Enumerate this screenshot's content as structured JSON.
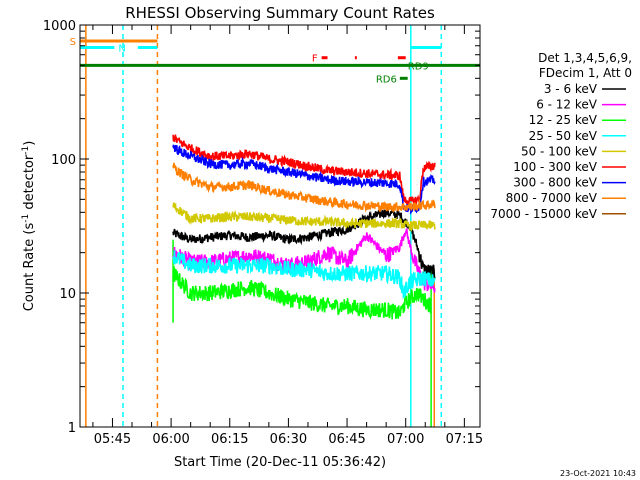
{
  "chart_data": {
    "type": "line",
    "title": "RHESSI Observing Summary Count Rates",
    "xlabel": "Start Time (20-Dec-11 05:36:42)",
    "ylabel_main": "Count Rate (s",
    "ylabel_sup1": "-1",
    "ylabel_mid": " detector",
    "ylabel_sup2": "-1",
    "ylabel_end": ")",
    "ylog": true,
    "ylim": [
      1,
      1000
    ],
    "xlim_minutes": [
      36.7,
      139
    ],
    "x_ticks": [
      {
        "label": "05:45",
        "minute": 45
      },
      {
        "label": "06:00",
        "minute": 60
      },
      {
        "label": "06:15",
        "minute": 75
      },
      {
        "label": "06:30",
        "minute": 90
      },
      {
        "label": "06:45",
        "minute": 105
      },
      {
        "label": "07:00",
        "minute": 120
      },
      {
        "label": "07:15",
        "minute": 135
      }
    ],
    "y_ticks": [
      {
        "label": "1",
        "value": 1
      },
      {
        "label": "10",
        "value": 10
      },
      {
        "label": "100",
        "value": 100
      },
      {
        "label": "1000",
        "value": 1000
      }
    ],
    "legend_header": [
      "Det 1,3,4,5,6,9,",
      "FDecim 1, Att 0"
    ],
    "data_gap_minutes": [
      56.5,
      60.5
    ],
    "series": [
      {
        "name": "3 - 6 keV",
        "color": "#000000",
        "x": [
          60.5,
          65,
          70,
          75,
          80,
          85,
          90,
          95,
          100,
          105,
          110,
          115,
          118.5,
          119.5,
          121,
          123,
          124.5,
          127.5
        ],
        "y": [
          28,
          25,
          26,
          27,
          26,
          27,
          25,
          26,
          28,
          30,
          36,
          40,
          38,
          35,
          32,
          22,
          15,
          14
        ]
      },
      {
        "name": "6 - 12 keV",
        "color": "#ff00ff",
        "x": [
          60.5,
          65,
          70,
          75,
          80,
          85,
          90,
          95,
          100,
          105,
          110,
          115,
          118.5,
          120,
          122,
          124.5,
          127.5
        ],
        "y": [
          20,
          17,
          17,
          18,
          19,
          18,
          16,
          17,
          20,
          17,
          27,
          19,
          22,
          30,
          18,
          12,
          11
        ]
      },
      {
        "name": "12 - 25 keV",
        "color": "#00ff00",
        "x": [
          60.5,
          65,
          70,
          75,
          80,
          85,
          90,
          95,
          100,
          105,
          110,
          115,
          118.5,
          119.5,
          121,
          123,
          124.5,
          126.5
        ],
        "y": [
          14,
          10,
          10,
          10.5,
          11,
          10,
          9,
          8.5,
          8,
          8,
          7.5,
          7.5,
          7,
          8,
          9,
          10,
          9,
          8
        ]
      },
      {
        "name": "25 - 50 keV",
        "color": "#00ffff",
        "x": [
          60.5,
          65,
          70,
          75,
          80,
          85,
          90,
          95,
          100,
          105,
          110,
          115,
          118.5,
          119.5,
          121,
          124.5,
          127.5
        ],
        "y": [
          19,
          16,
          16,
          16,
          16,
          16,
          15,
          15,
          14,
          14,
          14,
          14,
          13,
          10,
          12,
          13,
          12
        ]
      },
      {
        "name": "50 - 100 keV",
        "color": "#d2c800",
        "x": [
          60.5,
          65,
          70,
          75,
          80,
          85,
          90,
          95,
          100,
          105,
          110,
          115,
          118.5,
          120,
          122,
          124.5,
          127.5
        ],
        "y": [
          45,
          36,
          36,
          37,
          37,
          36,
          35,
          34,
          34,
          33,
          33,
          33,
          33,
          32,
          32,
          32,
          32
        ]
      },
      {
        "name": "100 - 300 keV",
        "color": "#ff0000",
        "x": [
          60.5,
          62,
          65,
          70,
          75,
          80,
          85,
          90,
          95,
          100,
          105,
          110,
          115,
          118.5,
          119.5,
          121,
          123.5,
          124.5,
          127.5
        ],
        "y": [
          145,
          135,
          120,
          105,
          105,
          110,
          100,
          95,
          88,
          82,
          80,
          78,
          76,
          75,
          50,
          48,
          50,
          85,
          90
        ]
      },
      {
        "name": "300 - 800 keV",
        "color": "#0000ff",
        "x": [
          60.5,
          62,
          65,
          70,
          75,
          80,
          85,
          90,
          95,
          100,
          105,
          110,
          115,
          118.5,
          119.5,
          121,
          123.5,
          124.5,
          127.5
        ],
        "y": [
          125,
          115,
          105,
          92,
          90,
          93,
          85,
          80,
          75,
          70,
          68,
          67,
          66,
          65,
          44,
          42,
          44,
          68,
          70
        ]
      },
      {
        "name": "800 - 7000 keV",
        "color": "#ff8000",
        "x": [
          60.5,
          62,
          65,
          70,
          75,
          80,
          85,
          90,
          95,
          100,
          105,
          110,
          115,
          118.5,
          121,
          124.5,
          127.5
        ],
        "y": [
          88,
          80,
          70,
          62,
          62,
          64,
          58,
          54,
          51,
          48,
          46,
          45,
          44,
          44,
          44,
          45,
          46
        ]
      },
      {
        "name": "7000 - 15000 keV",
        "color": "#a05000",
        "x": [
          126.5,
          127.5
        ],
        "y": [
          1,
          1
        ]
      }
    ],
    "vertical_lines": [
      {
        "minute": 38.2,
        "color": "#ff8000",
        "style": "solid"
      },
      {
        "minute": 47.7,
        "color": "#00ffff",
        "style": "dashed"
      },
      {
        "minute": 56.5,
        "color": "#ff8000",
        "style": "dashed"
      },
      {
        "minute": 60.5,
        "color": "#00ff00",
        "style": "solid",
        "ymax": 25,
        "ymin": 6
      },
      {
        "minute": 121.3,
        "color": "#00ffff",
        "style": "solid"
      },
      {
        "minute": 126.5,
        "color": "#00ff00",
        "style": "solid",
        "ymax": 15,
        "ymin": 1
      },
      {
        "minute": 127.3,
        "color": "#ff8000",
        "style": "solid",
        "ymax": 15,
        "ymin": 1
      },
      {
        "minute": 129.1,
        "color": "#00ffff",
        "style": "dashed"
      }
    ],
    "flag_bars": [
      {
        "label": "S",
        "color": "#ff8000",
        "start": 36.7,
        "end": 56.5,
        "y": 760,
        "label_side": "left"
      },
      {
        "label": "N",
        "color": "#00ffff",
        "start": 36.7,
        "end": 45.5,
        "y": 680,
        "label_side": "right"
      },
      {
        "label": "",
        "color": "#00ffff",
        "start": 51.5,
        "end": 56.5,
        "y": 680
      },
      {
        "label": "",
        "color": "#00ffff",
        "start": 121.3,
        "end": 129.1,
        "y": 680
      },
      {
        "label": "RD9",
        "color": "#008000",
        "start": 36.7,
        "end": 139,
        "y": 500,
        "label_side": "right_at",
        "label_minute": 121.3
      },
      {
        "label": "RD6",
        "color": "#008000",
        "start": 118.5,
        "end": 120.5,
        "y": 400,
        "label_side": "left"
      }
    ],
    "flare_segments": [
      {
        "label": "F",
        "color": "#ff0000",
        "start": 98.5,
        "end": 100,
        "y": 570
      },
      {
        "label": "",
        "color": "#ff0000",
        "start": 107,
        "end": 107.5,
        "y": 570
      },
      {
        "label": "",
        "color": "#ff0000",
        "start": 118,
        "end": 120,
        "y": 570
      }
    ],
    "footer_date": "23-Oct-2021 10:43"
  }
}
